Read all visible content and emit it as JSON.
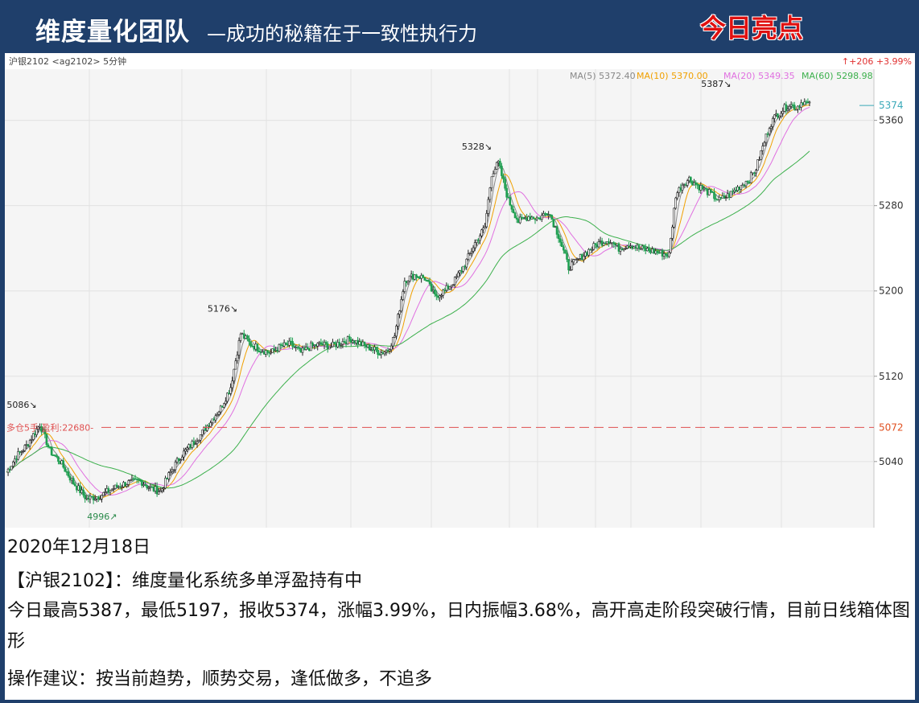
{
  "header": {
    "brand": "维度量化团队",
    "slogan": "—成功的秘籍在于一致性执行力",
    "highlight": "今日亮点"
  },
  "colors": {
    "header_bg": "#1f3f6b",
    "candle_up": "#222222",
    "candle_down": "#1e9e50",
    "ma5": "#888888",
    "ma10": "#f0a000",
    "ma20": "#e070e0",
    "ma60": "#3cb04c",
    "position_line": "#e05050",
    "last_price": "#3aa9b8"
  },
  "chart_data": {
    "type": "candlestick",
    "symbol_label": "沪银2102 <ag2102> 5分钟",
    "change_label": "↑+206 +3.99%",
    "ma_legend": [
      {
        "label": "MA(5) 5372.40",
        "color": "#888888"
      },
      {
        "label": "MA(10) 5370.00",
        "color": "#f0a000"
      },
      {
        "label": "MA(20) 5349.35",
        "color": "#e070e0"
      },
      {
        "label": "MA(60) 5298.98",
        "color": "#3cb04c"
      }
    ],
    "y_ticks": [
      5040,
      5120,
      5200,
      5280,
      5360
    ],
    "y_tick_labels": [
      "5040",
      "5120",
      "5200",
      "5280",
      "5360"
    ],
    "ylim": [
      4978,
      5408
    ],
    "last_price": 5374,
    "last_price_label": "5374",
    "position": {
      "price": 5072,
      "label": "多仓5手 盈利:22680-",
      "price_label": "5072"
    },
    "annotations": [
      {
        "x": 20,
        "price": 5086,
        "label": "5086↘"
      },
      {
        "x": 62,
        "price": 4996,
        "label": "4996↗"
      },
      {
        "x": 140,
        "price": 5176,
        "label": "5176↘"
      },
      {
        "x": 292,
        "price": 5328,
        "label": "5328↘"
      },
      {
        "x": 435,
        "price": 5387,
        "label": "5387↘"
      }
    ],
    "key_points": [
      [
        0,
        5030
      ],
      [
        6,
        5045
      ],
      [
        12,
        5055
      ],
      [
        20,
        5075
      ],
      [
        26,
        5050
      ],
      [
        32,
        5040
      ],
      [
        40,
        5020
      ],
      [
        48,
        5005
      ],
      [
        56,
        5008
      ],
      [
        64,
        5015
      ],
      [
        72,
        5020
      ],
      [
        80,
        5022
      ],
      [
        86,
        5015
      ],
      [
        92,
        5012
      ],
      [
        98,
        5030
      ],
      [
        104,
        5045
      ],
      [
        110,
        5055
      ],
      [
        116,
        5065
      ],
      [
        122,
        5078
      ],
      [
        128,
        5090
      ],
      [
        134,
        5110
      ],
      [
        140,
        5160
      ],
      [
        146,
        5150
      ],
      [
        152,
        5145
      ],
      [
        158,
        5142
      ],
      [
        164,
        5148
      ],
      [
        170,
        5150
      ],
      [
        176,
        5142
      ],
      [
        182,
        5148
      ],
      [
        188,
        5150
      ],
      [
        194,
        5148
      ],
      [
        200,
        5152
      ],
      [
        206,
        5155
      ],
      [
        212,
        5150
      ],
      [
        218,
        5146
      ],
      [
        224,
        5142
      ],
      [
        228,
        5145
      ],
      [
        232,
        5158
      ],
      [
        238,
        5210
      ],
      [
        244,
        5215
      ],
      [
        250,
        5212
      ],
      [
        256,
        5195
      ],
      [
        262,
        5200
      ],
      [
        268,
        5210
      ],
      [
        274,
        5225
      ],
      [
        280,
        5245
      ],
      [
        286,
        5260
      ],
      [
        290,
        5310
      ],
      [
        294,
        5320
      ],
      [
        300,
        5285
      ],
      [
        306,
        5265
      ],
      [
        312,
        5270
      ],
      [
        318,
        5268
      ],
      [
        324,
        5275
      ],
      [
        330,
        5252
      ],
      [
        336,
        5222
      ],
      [
        342,
        5230
      ],
      [
        348,
        5238
      ],
      [
        354,
        5245
      ],
      [
        360,
        5248
      ],
      [
        366,
        5240
      ],
      [
        372,
        5244
      ],
      [
        378,
        5240
      ],
      [
        384,
        5238
      ],
      [
        390,
        5236
      ],
      [
        396,
        5234
      ],
      [
        400,
        5290
      ],
      [
        404,
        5300
      ],
      [
        408,
        5305
      ],
      [
        414,
        5298
      ],
      [
        420,
        5292
      ],
      [
        426,
        5285
      ],
      [
        432,
        5290
      ],
      [
        438,
        5298
      ],
      [
        444,
        5305
      ],
      [
        448,
        5315
      ],
      [
        452,
        5335
      ],
      [
        456,
        5355
      ],
      [
        460,
        5365
      ],
      [
        464,
        5370
      ],
      [
        468,
        5375
      ],
      [
        472,
        5372
      ],
      [
        476,
        5378
      ],
      [
        480,
        5374
      ]
    ],
    "x_count": 480
  },
  "text_panel": {
    "date": "2020年12月18日",
    "line1": "【沪银2102】：维度量化系统多单浮盈持有中",
    "line2": "今日最高5387，最低5197，报收5374，涨幅3.99%，日内振幅3.68%，高开高走阶段突破行情，目前日线箱体图形",
    "line3": "操作建议：按当前趋势，顺势交易，逢低做多，不追多"
  }
}
